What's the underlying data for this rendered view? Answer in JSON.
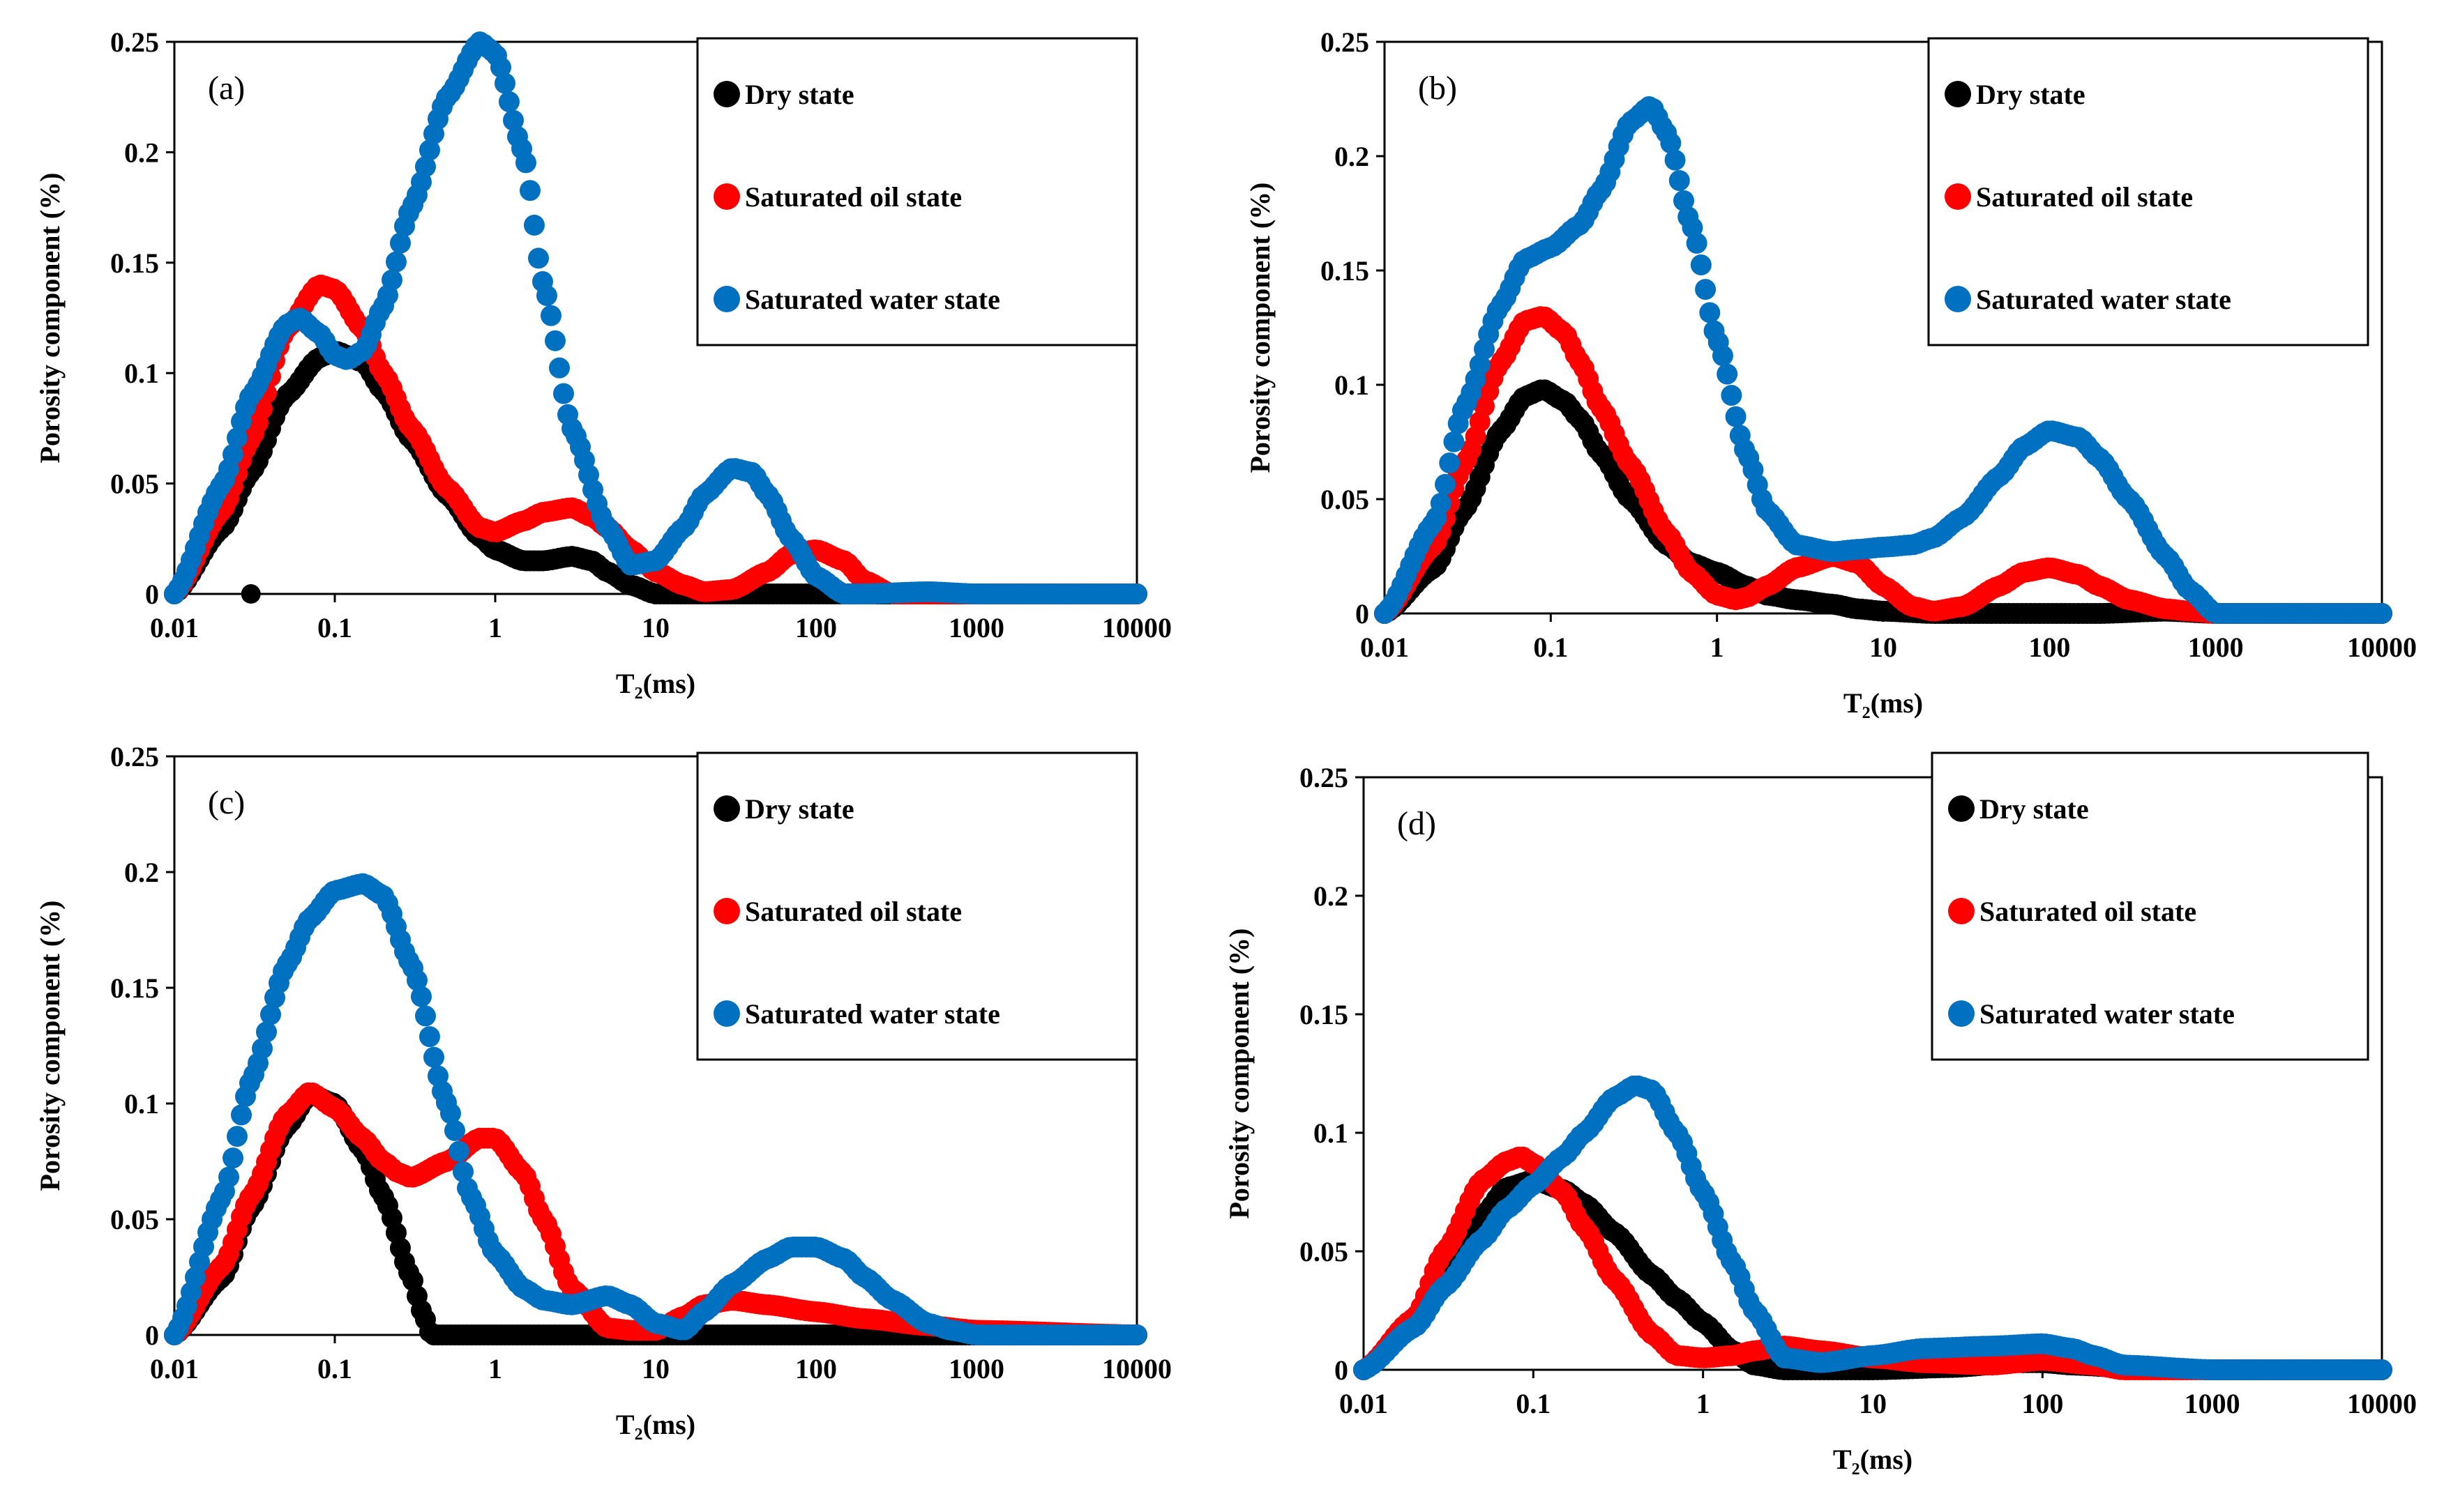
{
  "colors": {
    "dry": "#000000",
    "oil": "#ff0000",
    "water": "#0070c0"
  },
  "chart_data": [
    {
      "type": "scatter",
      "panel": "(a)",
      "xscale": "log",
      "xlim": [
        0.01,
        10000
      ],
      "ylim": [
        0,
        0.25
      ],
      "xticks": [
        "0.01",
        "0.1",
        "1",
        "10",
        "100",
        "1000",
        "10000"
      ],
      "yticks": [
        "0",
        "0.05",
        "0.1",
        "0.15",
        "0.2",
        "0.25"
      ],
      "xlabel": "T₂(ms)",
      "ylabel": "Porosity component (%)",
      "legend_placement": "top-right",
      "series": [
        {
          "name": "Dry state",
          "color": "#000000",
          "x": [
            0.01,
            0.02,
            0.03,
            0.05,
            0.08,
            0.1,
            0.15,
            0.2,
            0.3,
            0.5,
            0.8,
            1,
            1.5,
            2,
            3,
            4,
            5,
            7,
            10,
            20,
            50,
            100,
            200,
            1000,
            10000
          ],
          "y": [
            0,
            0.03,
            0.055,
            0.09,
            0.107,
            0.11,
            0.105,
            0.092,
            0.07,
            0.045,
            0.026,
            0.02,
            0.015,
            0.015,
            0.017,
            0.015,
            0.01,
            0.004,
            0,
            0,
            0,
            0,
            0,
            0,
            0
          ]
        },
        {
          "name": "Saturated oil state",
          "color": "#ff0000",
          "x": [
            0.01,
            0.02,
            0.03,
            0.05,
            0.08,
            0.1,
            0.15,
            0.2,
            0.3,
            0.5,
            0.8,
            1,
            1.5,
            2,
            3,
            4,
            5,
            7,
            10,
            15,
            20,
            30,
            50,
            70,
            100,
            150,
            200,
            300,
            1000,
            10000
          ],
          "y": [
            0,
            0.038,
            0.07,
            0.12,
            0.14,
            0.138,
            0.12,
            0.1,
            0.075,
            0.048,
            0.03,
            0.028,
            0.033,
            0.037,
            0.039,
            0.035,
            0.03,
            0.02,
            0.01,
            0.004,
            0.001,
            0.002,
            0.01,
            0.018,
            0.02,
            0.015,
            0.006,
            0,
            0,
            0
          ]
        },
        {
          "name": "Saturated water state",
          "color": "#0070c0",
          "x": [
            0.01,
            0.02,
            0.03,
            0.05,
            0.06,
            0.08,
            0.1,
            0.12,
            0.15,
            0.2,
            0.3,
            0.5,
            0.8,
            1,
            1.5,
            2,
            3,
            5,
            7,
            10,
            15,
            20,
            30,
            40,
            50,
            70,
            100,
            150,
            200,
            500,
            1000,
            10000
          ],
          "y": [
            0,
            0.05,
            0.09,
            0.122,
            0.125,
            0.118,
            0.108,
            0.106,
            0.11,
            0.13,
            0.175,
            0.225,
            0.25,
            0.245,
            0.2,
            0.14,
            0.075,
            0.03,
            0.013,
            0.015,
            0.03,
            0.045,
            0.057,
            0.055,
            0.045,
            0.025,
            0.008,
            0,
            0,
            0.001,
            0,
            0
          ]
        }
      ],
      "isolated_points": [
        {
          "series": "Dry state",
          "x": 0.03,
          "y": 0
        }
      ]
    },
    {
      "type": "scatter",
      "panel": "(b)",
      "xscale": "log",
      "xlim": [
        0.01,
        10000
      ],
      "ylim": [
        0,
        0.25
      ],
      "xticks": [
        "0.01",
        "0.1",
        "1",
        "10",
        "100",
        "1000",
        "10000"
      ],
      "yticks": [
        "0",
        "0.05",
        "0.1",
        "0.15",
        "0.2",
        "0.25"
      ],
      "xlabel": "T₂(ms)",
      "ylabel": "Porosity component (%)",
      "legend_placement": "top-right",
      "series": [
        {
          "name": "Dry state",
          "color": "#000000",
          "x": [
            0.01,
            0.02,
            0.03,
            0.05,
            0.07,
            0.09,
            0.12,
            0.15,
            0.2,
            0.3,
            0.5,
            0.7,
            1,
            1.5,
            2,
            3,
            5,
            7,
            10,
            20,
            50,
            100,
            200,
            500,
            1000,
            10000
          ],
          "y": [
            0,
            0.02,
            0.045,
            0.08,
            0.095,
            0.098,
            0.093,
            0.085,
            0.07,
            0.05,
            0.03,
            0.022,
            0.018,
            0.012,
            0.008,
            0.006,
            0.004,
            0.002,
            0.001,
            0,
            0,
            0,
            0,
            0.001,
            0,
            0
          ]
        },
        {
          "name": "Saturated oil state",
          "color": "#ff0000",
          "x": [
            0.01,
            0.02,
            0.03,
            0.05,
            0.07,
            0.09,
            0.12,
            0.15,
            0.2,
            0.3,
            0.5,
            0.7,
            1,
            1.3,
            1.5,
            2,
            3,
            5,
            7,
            10,
            15,
            20,
            30,
            50,
            70,
            100,
            150,
            200,
            300,
            500,
            700,
            1000,
            10000
          ],
          "y": [
            0,
            0.03,
            0.065,
            0.11,
            0.128,
            0.13,
            0.123,
            0.11,
            0.09,
            0.065,
            0.035,
            0.018,
            0.008,
            0.006,
            0.007,
            0.012,
            0.02,
            0.025,
            0.022,
            0.012,
            0.003,
            0.001,
            0.003,
            0.012,
            0.018,
            0.02,
            0.017,
            0.012,
            0.006,
            0.002,
            0.001,
            0,
            0
          ]
        },
        {
          "name": "Saturated water state",
          "color": "#0070c0",
          "x": [
            0.01,
            0.02,
            0.03,
            0.05,
            0.07,
            0.1,
            0.15,
            0.2,
            0.3,
            0.4,
            0.5,
            0.7,
            1,
            1.5,
            2,
            3,
            5,
            7,
            10,
            15,
            20,
            30,
            50,
            70,
            100,
            150,
            200,
            300,
            500,
            700,
            1000,
            10000
          ],
          "y": [
            0,
            0.04,
            0.09,
            0.135,
            0.155,
            0.16,
            0.17,
            0.185,
            0.215,
            0.222,
            0.21,
            0.17,
            0.12,
            0.07,
            0.045,
            0.03,
            0.027,
            0.028,
            0.029,
            0.03,
            0.033,
            0.042,
            0.06,
            0.073,
            0.08,
            0.077,
            0.068,
            0.05,
            0.025,
            0.01,
            0,
            0
          ]
        }
      ]
    },
    {
      "type": "scatter",
      "panel": "(c)",
      "xscale": "log",
      "xlim": [
        0.01,
        10000
      ],
      "ylim": [
        0,
        0.25
      ],
      "xticks": [
        "0.01",
        "0.1",
        "1",
        "10",
        "100",
        "1000",
        "10000"
      ],
      "yticks": [
        "0",
        "0.05",
        "0.1",
        "0.15",
        "0.2",
        "0.25"
      ],
      "xlabel": "T₂(ms)",
      "ylabel": "Porosity component (%)",
      "legend_placement": "top-right",
      "series": [
        {
          "name": "Dry state",
          "color": "#000000",
          "x": [
            0.01,
            0.02,
            0.03,
            0.05,
            0.07,
            0.1,
            0.15,
            0.2,
            0.3,
            0.35,
            0.4,
            0.5,
            1,
            10,
            100,
            1000,
            10000
          ],
          "y": [
            0,
            0.025,
            0.055,
            0.09,
            0.104,
            0.1,
            0.08,
            0.06,
            0.025,
            0.01,
            0,
            0,
            0,
            0,
            0,
            0,
            0
          ]
        },
        {
          "name": "Saturated oil state",
          "color": "#ff0000",
          "x": [
            0.01,
            0.02,
            0.03,
            0.05,
            0.07,
            0.1,
            0.15,
            0.2,
            0.25,
            0.3,
            0.5,
            0.8,
            1,
            1.5,
            2,
            3,
            5,
            7,
            10,
            15,
            20,
            30,
            50,
            100,
            200,
            500,
            1000,
            10000
          ],
          "y": [
            0,
            0.03,
            0.06,
            0.095,
            0.105,
            0.098,
            0.085,
            0.075,
            0.07,
            0.068,
            0.075,
            0.085,
            0.085,
            0.07,
            0.05,
            0.02,
            0.003,
            0.002,
            0.002,
            0.008,
            0.013,
            0.015,
            0.013,
            0.01,
            0.007,
            0.004,
            0.002,
            0
          ]
        },
        {
          "name": "Saturated water state",
          "color": "#0070c0",
          "x": [
            0.01,
            0.02,
            0.03,
            0.05,
            0.07,
            0.1,
            0.15,
            0.2,
            0.3,
            0.5,
            0.7,
            1,
            1.5,
            2,
            3,
            5,
            7,
            10,
            15,
            20,
            30,
            50,
            70,
            100,
            150,
            200,
            300,
            500,
            700,
            1000,
            10000
          ],
          "y": [
            0,
            0.06,
            0.11,
            0.16,
            0.18,
            0.192,
            0.195,
            0.19,
            0.16,
            0.1,
            0.06,
            0.035,
            0.02,
            0.015,
            0.013,
            0.017,
            0.013,
            0.005,
            0.002,
            0.01,
            0.022,
            0.033,
            0.038,
            0.038,
            0.033,
            0.025,
            0.015,
            0.005,
            0.002,
            0,
            0
          ]
        }
      ]
    },
    {
      "type": "scatter",
      "panel": "(d)",
      "xscale": "log",
      "xlim": [
        0.01,
        10000
      ],
      "ylim": [
        0,
        0.25
      ],
      "xticks": [
        "0.01",
        "0.1",
        "1",
        "10",
        "100",
        "1000",
        "10000"
      ],
      "yticks": [
        "0",
        "0.05",
        "0.1",
        "0.15",
        "0.2",
        "0.25"
      ],
      "xlabel": "T₂(ms)",
      "ylabel": "Porosity component (%)",
      "legend_placement": "top-right",
      "series": [
        {
          "name": "Dry state",
          "color": "#000000",
          "x": [
            0.01,
            0.02,
            0.03,
            0.05,
            0.07,
            0.1,
            0.15,
            0.2,
            0.3,
            0.5,
            0.7,
            1,
            1.5,
            2,
            3,
            5,
            10,
            30,
            70,
            100,
            150,
            300,
            1000,
            10000
          ],
          "y": [
            0,
            0.02,
            0.04,
            0.065,
            0.077,
            0.08,
            0.076,
            0.07,
            0.058,
            0.04,
            0.03,
            0.02,
            0.008,
            0.002,
            0,
            0,
            0,
            0.001,
            0.003,
            0.003,
            0.002,
            0.001,
            0,
            0
          ]
        },
        {
          "name": "Saturated oil state",
          "color": "#ff0000",
          "x": [
            0.01,
            0.02,
            0.03,
            0.05,
            0.07,
            0.085,
            0.1,
            0.15,
            0.2,
            0.3,
            0.5,
            0.7,
            1,
            1.5,
            2,
            3,
            5,
            10,
            20,
            50,
            100,
            200,
            300,
            1000,
            10000
          ],
          "y": [
            0,
            0.022,
            0.05,
            0.08,
            0.088,
            0.09,
            0.087,
            0.075,
            0.06,
            0.038,
            0.015,
            0.006,
            0.005,
            0.006,
            0.008,
            0.01,
            0.008,
            0.005,
            0.003,
            0.002,
            0.004,
            0.002,
            0,
            0,
            0
          ]
        },
        {
          "name": "Saturated water state",
          "color": "#0070c0",
          "x": [
            0.01,
            0.02,
            0.03,
            0.05,
            0.07,
            0.1,
            0.15,
            0.2,
            0.3,
            0.4,
            0.5,
            0.7,
            1,
            1.5,
            2,
            3,
            5,
            10,
            20,
            50,
            100,
            150,
            200,
            300,
            1000,
            10000
          ],
          "y": [
            0,
            0.018,
            0.035,
            0.055,
            0.068,
            0.078,
            0.09,
            0.1,
            0.115,
            0.12,
            0.118,
            0.1,
            0.075,
            0.045,
            0.025,
            0.005,
            0.003,
            0.006,
            0.009,
            0.01,
            0.011,
            0.009,
            0.006,
            0.002,
            0,
            0
          ]
        }
      ]
    }
  ]
}
